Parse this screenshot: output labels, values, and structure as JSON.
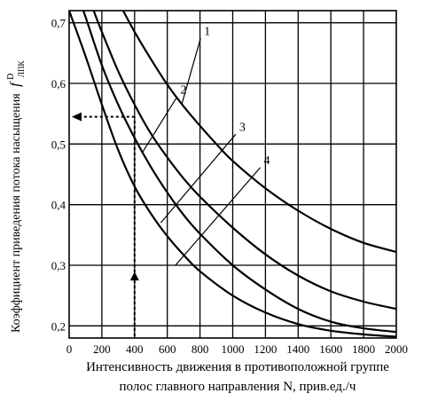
{
  "chart_data": {
    "type": "line",
    "xlabel_line1": "Интенсивность движения в противоположной группе",
    "xlabel_line2": "полос главного направления  N, прив.ед./ч",
    "ylabel": "Коэффициент приведения потока насыщения",
    "ylabel_symbol": "f",
    "ylabel_sup": "D",
    "ylabel_sub": "ЛПК",
    "xlim": [
      0,
      2000
    ],
    "ylim": [
      0.18,
      0.72
    ],
    "x_ticks": [
      0,
      200,
      400,
      600,
      800,
      1000,
      1200,
      1400,
      1600,
      1800,
      2000
    ],
    "y_ticks": [
      0.2,
      0.3,
      0.4,
      0.5,
      0.6,
      0.7
    ],
    "y_tick_labels": [
      "0,2",
      "0,3",
      "0,4",
      "0,5",
      "0,6",
      "0,7"
    ],
    "grid": true,
    "series": [
      {
        "name": "1",
        "x": [
          330,
          400,
          500,
          600,
          700,
          800,
          900,
          1000,
          1200,
          1400,
          1600,
          1800,
          2000
        ],
        "y": [
          0.72,
          0.685,
          0.64,
          0.598,
          0.562,
          0.53,
          0.5,
          0.472,
          0.427,
          0.39,
          0.36,
          0.337,
          0.322
        ]
      },
      {
        "name": "2",
        "x": [
          150,
          200,
          300,
          400,
          500,
          600,
          700,
          800,
          1000,
          1200,
          1400,
          1600,
          1800,
          2000
        ],
        "y": [
          0.72,
          0.685,
          0.62,
          0.565,
          0.517,
          0.478,
          0.443,
          0.413,
          0.362,
          0.318,
          0.283,
          0.257,
          0.24,
          0.228
        ]
      },
      {
        "name": "3",
        "x": [
          85,
          100,
          200,
          300,
          400,
          500,
          600,
          700,
          800,
          1000,
          1200,
          1400,
          1600,
          1800,
          2000
        ],
        "y": [
          0.72,
          0.71,
          0.63,
          0.565,
          0.51,
          0.462,
          0.42,
          0.383,
          0.352,
          0.3,
          0.26,
          0.228,
          0.207,
          0.196,
          0.19
        ]
      },
      {
        "name": "4",
        "x": [
          0,
          100,
          200,
          300,
          400,
          500,
          600,
          700,
          800,
          1000,
          1200,
          1400,
          1600,
          1800,
          2000
        ],
        "y": [
          0.72,
          0.645,
          0.565,
          0.49,
          0.43,
          0.385,
          0.348,
          0.317,
          0.29,
          0.25,
          0.222,
          0.203,
          0.192,
          0.186,
          0.182
        ]
      }
    ],
    "annotation": {
      "x": 400,
      "y": 0.545,
      "style": "dashed-arrows"
    }
  }
}
